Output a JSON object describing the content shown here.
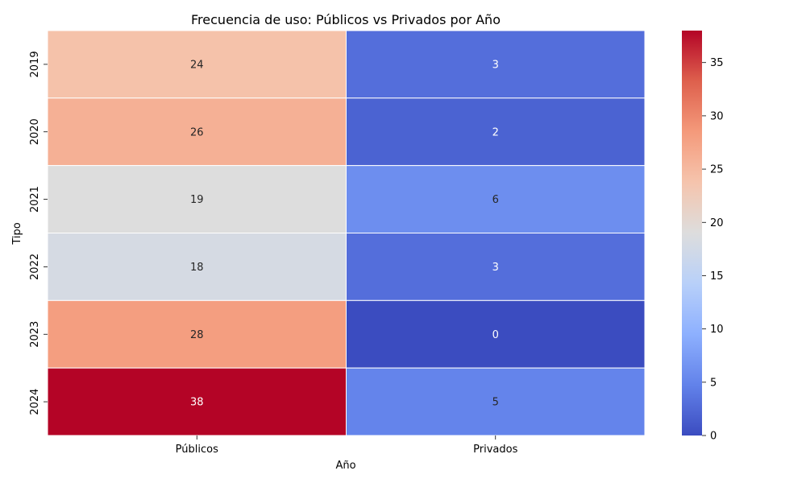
{
  "chart_data": {
    "type": "heatmap",
    "title": "Frecuencia de uso: Públicos vs Privados por Año",
    "xlabel": "Año",
    "ylabel": "Tipo",
    "columns": [
      "Públicos",
      "Privados"
    ],
    "rows": [
      "2019",
      "2020",
      "2021",
      "2022",
      "2023",
      "2024"
    ],
    "values": [
      [
        24,
        3
      ],
      [
        26,
        2
      ],
      [
        19,
        6
      ],
      [
        18,
        3
      ],
      [
        28,
        0
      ],
      [
        38,
        5
      ]
    ],
    "colormap": "coolwarm",
    "vmin": 0,
    "vmax": 38,
    "colorbar_ticks": [
      0,
      5,
      10,
      15,
      20,
      25,
      30,
      35
    ],
    "annotated": true
  }
}
